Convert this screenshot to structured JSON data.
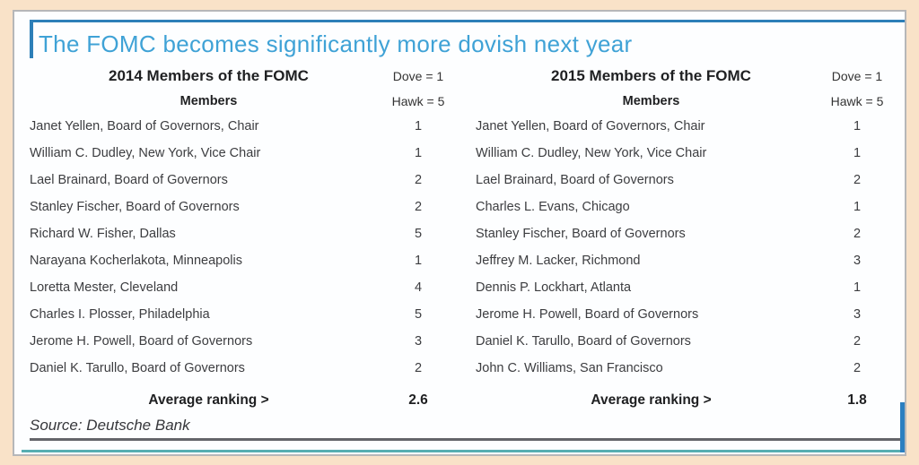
{
  "title": "The FOMC becomes significantly more dovish next year",
  "source_label": "Source: Deutsche Bank",
  "tables": [
    {
      "heading": "2014 Members of the FOMC",
      "members_label": "Members",
      "dove_label": "Dove = 1",
      "hawk_label": "Hawk = 5",
      "rows": [
        {
          "name": "Janet Yellen, Board of Governors, Chair",
          "rank": "1"
        },
        {
          "name": "William C. Dudley, New York, Vice Chair",
          "rank": "1"
        },
        {
          "name": "Lael Brainard, Board of Governors",
          "rank": "2"
        },
        {
          "name": "Stanley Fischer, Board of Governors",
          "rank": "2"
        },
        {
          "name": "Richard W. Fisher, Dallas",
          "rank": "5"
        },
        {
          "name": "Narayana Kocherlakota, Minneapolis",
          "rank": "1"
        },
        {
          "name": "Loretta Mester, Cleveland",
          "rank": "4"
        },
        {
          "name": "Charles I. Plosser, Philadelphia",
          "rank": "5"
        },
        {
          "name": "Jerome H. Powell, Board of Governors",
          "rank": "3"
        },
        {
          "name": "Daniel K. Tarullo, Board of Governors",
          "rank": "2"
        }
      ],
      "average_label": "Average ranking  >",
      "average_value": "2.6"
    },
    {
      "heading": "2015 Members of the FOMC",
      "members_label": "Members",
      "dove_label": "Dove = 1",
      "hawk_label": "Hawk = 5",
      "rows": [
        {
          "name": "Janet Yellen, Board of Governors, Chair",
          "rank": "1"
        },
        {
          "name": "William C. Dudley, New York, Vice Chair",
          "rank": "1"
        },
        {
          "name": "Lael Brainard, Board of Governors",
          "rank": "2"
        },
        {
          "name": "Charles L. Evans, Chicago",
          "rank": "1"
        },
        {
          "name": "Stanley Fischer, Board of Governors",
          "rank": "2"
        },
        {
          "name": "Jeffrey M. Lacker, Richmond",
          "rank": "3"
        },
        {
          "name": "Dennis P. Lockhart, Atlanta",
          "rank": "1"
        },
        {
          "name": "Jerome H. Powell, Board of Governors",
          "rank": "3"
        },
        {
          "name": "Daniel K. Tarullo, Board of Governors",
          "rank": "2"
        },
        {
          "name": "John C. Williams, San Francisco",
          "rank": "2"
        }
      ],
      "average_label": "Average ranking  >",
      "average_value": "1.8"
    }
  ],
  "colors": {
    "title_blue": "#3fa2d6",
    "accent_blue": "#2d7fb8",
    "teal_rule": "#57aeb2",
    "source_rule": "#64656a",
    "page_background": "#f9e2c8",
    "panel_background": "#fdfeff",
    "text": "#3c3d40"
  }
}
